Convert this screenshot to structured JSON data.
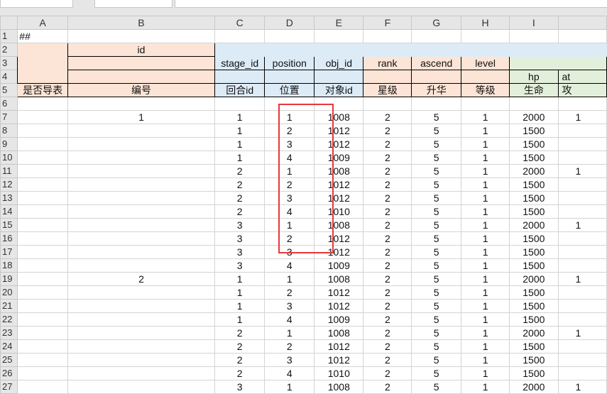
{
  "columns": [
    "A",
    "B",
    "C",
    "D",
    "E",
    "F",
    "G",
    "H",
    "I",
    ""
  ],
  "row1": {
    "a": "##"
  },
  "header": {
    "b2": "id",
    "row3": {
      "c": "stage_id",
      "d": "position",
      "e": "obj_id",
      "f": "rank",
      "g": "ascend",
      "h": "level"
    },
    "row4": {
      "i": "hp",
      "j": "at"
    },
    "row5": {
      "a": "是否导表",
      "b": "编号",
      "c": "回合id",
      "d": "位置",
      "e": "对象id",
      "f": "星级",
      "g": "升华",
      "h": "等级",
      "i": "生命",
      "j": "攻"
    }
  },
  "rows": [
    {
      "n": "7",
      "b": "1",
      "c": "1",
      "d": "1",
      "e": "1008",
      "f": "2",
      "g": "5",
      "h": "1",
      "i": "2000",
      "j": "1"
    },
    {
      "n": "8",
      "b": "",
      "c": "1",
      "d": "2",
      "e": "1012",
      "f": "2",
      "g": "5",
      "h": "1",
      "i": "1500",
      "j": ""
    },
    {
      "n": "9",
      "b": "",
      "c": "1",
      "d": "3",
      "e": "1012",
      "f": "2",
      "g": "5",
      "h": "1",
      "i": "1500",
      "j": ""
    },
    {
      "n": "10",
      "b": "",
      "c": "1",
      "d": "4",
      "e": "1009",
      "f": "2",
      "g": "5",
      "h": "1",
      "i": "1500",
      "j": ""
    },
    {
      "n": "11",
      "b": "",
      "c": "2",
      "d": "1",
      "e": "1008",
      "f": "2",
      "g": "5",
      "h": "1",
      "i": "2000",
      "j": "1"
    },
    {
      "n": "12",
      "b": "",
      "c": "2",
      "d": "2",
      "e": "1012",
      "f": "2",
      "g": "5",
      "h": "1",
      "i": "1500",
      "j": ""
    },
    {
      "n": "13",
      "b": "",
      "c": "2",
      "d": "3",
      "e": "1012",
      "f": "2",
      "g": "5",
      "h": "1",
      "i": "1500",
      "j": ""
    },
    {
      "n": "14",
      "b": "",
      "c": "2",
      "d": "4",
      "e": "1010",
      "f": "2",
      "g": "5",
      "h": "1",
      "i": "1500",
      "j": ""
    },
    {
      "n": "15",
      "b": "",
      "c": "3",
      "d": "1",
      "e": "1008",
      "f": "2",
      "g": "5",
      "h": "1",
      "i": "2000",
      "j": "1"
    },
    {
      "n": "16",
      "b": "",
      "c": "3",
      "d": "2",
      "e": "1012",
      "f": "2",
      "g": "5",
      "h": "1",
      "i": "1500",
      "j": ""
    },
    {
      "n": "17",
      "b": "",
      "c": "3",
      "d": "3",
      "e": "1012",
      "f": "2",
      "g": "5",
      "h": "1",
      "i": "1500",
      "j": ""
    },
    {
      "n": "18",
      "b": "",
      "c": "3",
      "d": "4",
      "e": "1009",
      "f": "2",
      "g": "5",
      "h": "1",
      "i": "1500",
      "j": ""
    },
    {
      "n": "19",
      "b": "2",
      "c": "1",
      "d": "1",
      "e": "1008",
      "f": "2",
      "g": "5",
      "h": "1",
      "i": "2000",
      "j": "1"
    },
    {
      "n": "20",
      "b": "",
      "c": "1",
      "d": "2",
      "e": "1012",
      "f": "2",
      "g": "5",
      "h": "1",
      "i": "1500",
      "j": ""
    },
    {
      "n": "21",
      "b": "",
      "c": "1",
      "d": "3",
      "e": "1012",
      "f": "2",
      "g": "5",
      "h": "1",
      "i": "1500",
      "j": ""
    },
    {
      "n": "22",
      "b": "",
      "c": "1",
      "d": "4",
      "e": "1009",
      "f": "2",
      "g": "5",
      "h": "1",
      "i": "1500",
      "j": ""
    },
    {
      "n": "23",
      "b": "",
      "c": "2",
      "d": "1",
      "e": "1008",
      "f": "2",
      "g": "5",
      "h": "1",
      "i": "2000",
      "j": "1"
    },
    {
      "n": "24",
      "b": "",
      "c": "2",
      "d": "2",
      "e": "1012",
      "f": "2",
      "g": "5",
      "h": "1",
      "i": "1500",
      "j": ""
    },
    {
      "n": "25",
      "b": "",
      "c": "2",
      "d": "3",
      "e": "1012",
      "f": "2",
      "g": "5",
      "h": "1",
      "i": "1500",
      "j": ""
    },
    {
      "n": "26",
      "b": "",
      "c": "2",
      "d": "4",
      "e": "1010",
      "f": "2",
      "g": "5",
      "h": "1",
      "i": "1500",
      "j": ""
    },
    {
      "n": "27",
      "b": "",
      "c": "3",
      "d": "1",
      "e": "1008",
      "f": "2",
      "g": "5",
      "h": "1",
      "i": "2000",
      "j": "1"
    }
  ],
  "highlight_color": "#e8373a"
}
